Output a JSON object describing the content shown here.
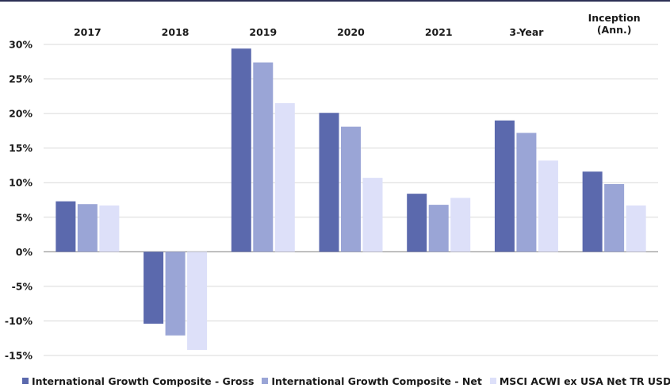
{
  "chart_data": {
    "type": "bar",
    "categories": [
      "2017",
      "2018",
      "2019",
      "2020",
      "2021",
      "3-Year",
      "Inception (Ann.)"
    ],
    "category_lines": [
      [
        "2017"
      ],
      [
        "2018"
      ],
      [
        "2019"
      ],
      [
        "2020"
      ],
      [
        "2021"
      ],
      [
        "3-Year"
      ],
      [
        "Inception",
        "(Ann.)"
      ]
    ],
    "series": [
      {
        "name": "International Growth Composite - Gross",
        "color": "#5b69ad",
        "values": [
          7.3,
          -10.4,
          29.4,
          20.1,
          8.4,
          19.0,
          11.6
        ]
      },
      {
        "name": "International Growth Composite - Net",
        "color": "#9aa5d6",
        "values": [
          6.9,
          -12.1,
          27.4,
          18.1,
          6.8,
          17.2,
          9.8
        ]
      },
      {
        "name": "MSCI ACWI ex USA Net TR USD",
        "color": "#dde0f9",
        "values": [
          6.7,
          -14.2,
          21.5,
          10.7,
          7.8,
          13.2,
          6.7
        ]
      }
    ],
    "y_ticks": [
      "30%",
      "25%",
      "20%",
      "15%",
      "10%",
      "5%",
      "0%",
      "-5%",
      "-10%",
      "-15%"
    ],
    "ylim": [
      -15,
      30
    ],
    "y_step": 5,
    "grid": true,
    "legend_position": "bottom",
    "category_labels_position": "top",
    "title": "",
    "xlabel": "",
    "ylabel": ""
  }
}
